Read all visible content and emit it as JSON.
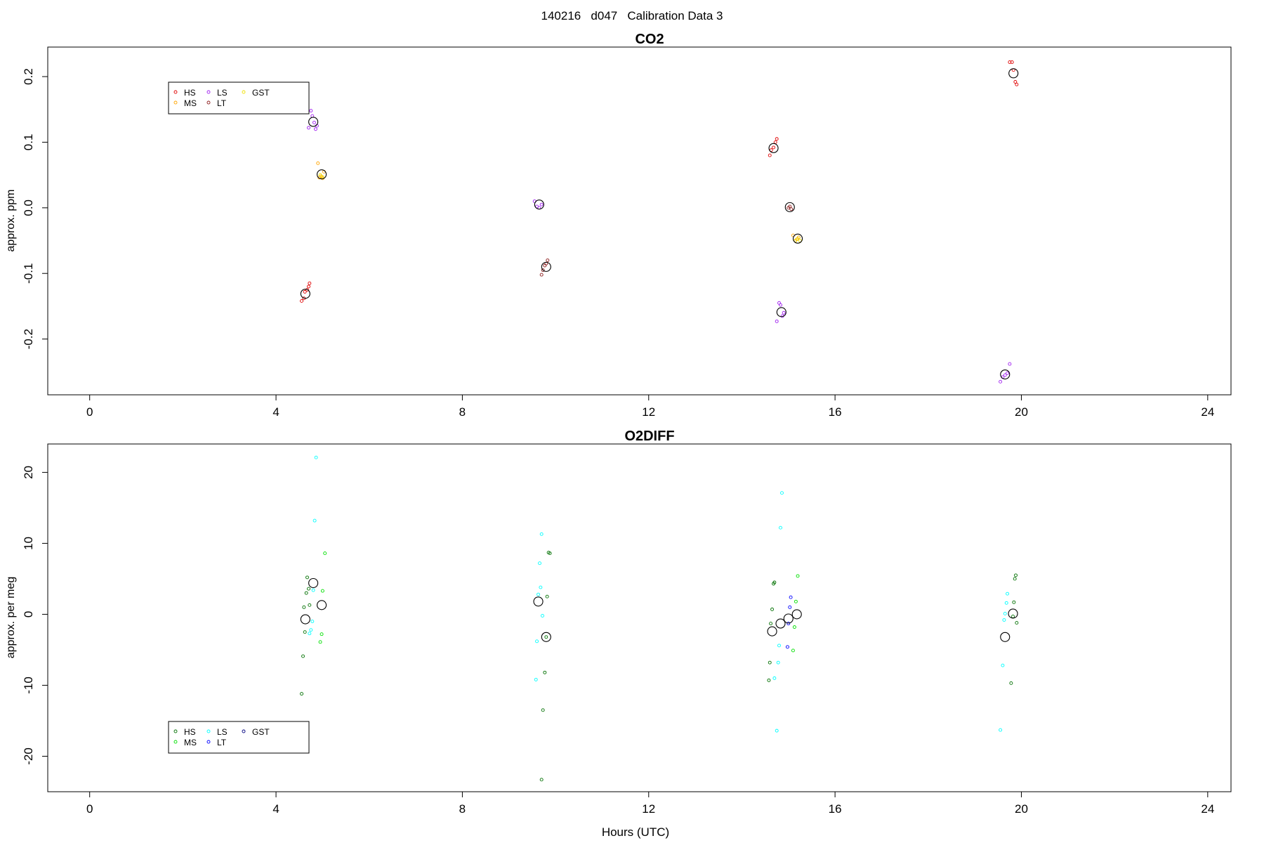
{
  "figure_title": "140216   d047   Calibration Data 3",
  "xlabel": "Hours (UTC)",
  "colors": {
    "HS": "#e00000",
    "MS": "#ffa500",
    "LS": "#a020f0",
    "LT": "#8b1a1a",
    "GST": "#f0e000",
    "HS2": "#007000",
    "MS2": "#00e000",
    "LS2": "#00ffff",
    "LT2": "#0000ff",
    "GST2": "#000080"
  },
  "chart_data": [
    {
      "type": "scatter",
      "title": "CO2",
      "xlabel": "",
      "ylabel": "approx. ppm",
      "xlim": [
        -0.9,
        24.5
      ],
      "ylim": [
        -0.285,
        0.245
      ],
      "x_ticks": [
        0,
        4,
        8,
        12,
        16,
        20,
        24
      ],
      "y_ticks": [
        -0.2,
        -0.1,
        0.0,
        0.1,
        0.2
      ],
      "y_tick_labels": [
        "-0.2",
        "-0.1",
        "0.0",
        "0.1",
        "0.2"
      ],
      "legend": {
        "position": "top-left",
        "entries": [
          {
            "name": "HS",
            "color": "#e00000"
          },
          {
            "name": "MS",
            "color": "#ffa500"
          },
          {
            "name": "LS",
            "color": "#a020f0"
          },
          {
            "name": "LT",
            "color": "#8b1a1a"
          },
          {
            "name": "GST",
            "color": "#f0e000"
          }
        ]
      },
      "series": [
        {
          "name": "HS",
          "color": "#e00000",
          "points": [
            [
              4.55,
              -0.142
            ],
            [
              4.6,
              -0.138
            ],
            [
              4.62,
              -0.128
            ],
            [
              4.67,
              -0.125
            ],
            [
              4.7,
              -0.12
            ],
            [
              4.72,
              -0.115
            ],
            [
              14.6,
              0.08
            ],
            [
              14.63,
              0.088
            ],
            [
              14.68,
              0.092
            ],
            [
              14.72,
              0.1
            ],
            [
              14.75,
              0.105
            ],
            [
              19.75,
              0.222
            ],
            [
              19.8,
              0.222
            ],
            [
              19.83,
              0.21
            ],
            [
              19.87,
              0.192
            ],
            [
              19.9,
              0.188
            ]
          ]
        },
        {
          "name": "MS",
          "color": "#ffa500",
          "points": [
            [
              4.9,
              0.068
            ],
            [
              4.93,
              0.046
            ],
            [
              4.97,
              0.048
            ],
            [
              5.0,
              0.045
            ],
            [
              5.03,
              0.055
            ],
            [
              15.1,
              -0.042
            ],
            [
              15.15,
              -0.05
            ],
            [
              15.18,
              -0.048
            ],
            [
              15.22,
              -0.045
            ]
          ]
        },
        {
          "name": "LS",
          "color": "#a020f0",
          "points": [
            [
              4.7,
              0.122
            ],
            [
              4.75,
              0.148
            ],
            [
              4.78,
              0.14
            ],
            [
              4.82,
              0.13
            ],
            [
              4.85,
              0.12
            ],
            [
              4.88,
              0.125
            ],
            [
              9.55,
              0.01
            ],
            [
              9.6,
              0.002
            ],
            [
              9.65,
              0.0
            ],
            [
              9.7,
              0.005
            ],
            [
              14.75,
              -0.173
            ],
            [
              14.8,
              -0.145
            ],
            [
              14.83,
              -0.148
            ],
            [
              14.87,
              -0.165
            ],
            [
              14.9,
              -0.16
            ],
            [
              19.55,
              -0.265
            ],
            [
              19.6,
              -0.258
            ],
            [
              19.65,
              -0.255
            ],
            [
              19.7,
              -0.252
            ],
            [
              19.75,
              -0.238
            ]
          ]
        },
        {
          "name": "LT",
          "color": "#8b1a1a",
          "points": [
            [
              9.7,
              -0.102
            ],
            [
              9.73,
              -0.095
            ],
            [
              9.77,
              -0.088
            ],
            [
              9.8,
              -0.085
            ],
            [
              9.83,
              -0.08
            ],
            [
              15.0,
              0.0
            ],
            [
              15.03,
              0.002
            ],
            [
              15.06,
              -0.002
            ]
          ]
        },
        {
          "name": "GST",
          "color": "#f0e000",
          "points": [
            [
              4.95,
              0.05
            ],
            [
              5.0,
              0.047
            ],
            [
              15.15,
              -0.05
            ],
            [
              15.2,
              -0.047
            ],
            [
              15.25,
              -0.05
            ]
          ]
        },
        {
          "name": "",
          "color": "#000000",
          "size": "large",
          "points": [
            [
              4.63,
              -0.131
            ],
            [
              4.8,
              0.131
            ],
            [
              4.98,
              0.051
            ],
            [
              9.65,
              0.005
            ],
            [
              9.8,
              -0.09
            ],
            [
              14.68,
              0.091
            ],
            [
              14.85,
              -0.159
            ],
            [
              15.03,
              0.001
            ],
            [
              15.2,
              -0.047
            ],
            [
              19.65,
              -0.254
            ],
            [
              19.83,
              0.205
            ]
          ]
        }
      ]
    },
    {
      "type": "scatter",
      "title": "O2DIFF",
      "xlabel": "Hours (UTC)",
      "ylabel": "approx. per meg",
      "xlim": [
        -0.9,
        24.5
      ],
      "ylim": [
        -25,
        24
      ],
      "x_ticks": [
        0,
        4,
        8,
        12,
        16,
        20,
        24
      ],
      "y_ticks": [
        -20,
        -10,
        0,
        10,
        20
      ],
      "y_tick_labels": [
        "-20",
        "-10",
        "0",
        "10",
        "20"
      ],
      "legend": {
        "position": "bottom-left",
        "entries": [
          {
            "name": "HS",
            "color": "#007000"
          },
          {
            "name": "MS",
            "color": "#00e000"
          },
          {
            "name": "LS",
            "color": "#00ffff"
          },
          {
            "name": "LT",
            "color": "#0000ff"
          },
          {
            "name": "GST",
            "color": "#000080"
          }
        ]
      },
      "series": [
        {
          "name": "HS",
          "color": "#007000",
          "points": [
            [
              4.55,
              -11.2
            ],
            [
              4.58,
              -5.9
            ],
            [
              4.62,
              -2.5
            ],
            [
              4.6,
              1.0
            ],
            [
              4.65,
              3.0
            ],
            [
              4.67,
              5.2
            ],
            [
              4.7,
              3.6
            ],
            [
              4.72,
              1.3
            ],
            [
              9.7,
              -23.3
            ],
            [
              9.73,
              -13.5
            ],
            [
              9.77,
              -8.2
            ],
            [
              9.8,
              -3.2
            ],
            [
              9.82,
              2.5
            ],
            [
              9.85,
              8.7
            ],
            [
              9.88,
              8.6
            ],
            [
              14.58,
              -9.3
            ],
            [
              14.6,
              -6.8
            ],
            [
              14.62,
              -1.3
            ],
            [
              14.65,
              0.7
            ],
            [
              14.68,
              4.3
            ],
            [
              14.7,
              4.5
            ],
            [
              19.78,
              -9.7
            ],
            [
              19.82,
              -0.3
            ],
            [
              19.84,
              1.7
            ],
            [
              19.86,
              5.0
            ],
            [
              19.88,
              5.5
            ],
            [
              19.9,
              -1.2
            ]
          ]
        },
        {
          "name": "MS",
          "color": "#00e000",
          "points": [
            [
              4.95,
              -3.9
            ],
            [
              4.98,
              -2.8
            ],
            [
              5.0,
              3.3
            ],
            [
              5.05,
              8.6
            ],
            [
              15.1,
              -5.1
            ],
            [
              15.13,
              -1.8
            ],
            [
              15.16,
              1.8
            ],
            [
              15.2,
              5.4
            ]
          ]
        },
        {
          "name": "LS",
          "color": "#00ffff",
          "points": [
            [
              4.72,
              -2.7
            ],
            [
              4.75,
              -2.2
            ],
            [
              4.78,
              -1.0
            ],
            [
              4.8,
              3.4
            ],
            [
              4.83,
              13.2
            ],
            [
              4.86,
              22.1
            ],
            [
              9.58,
              -9.2
            ],
            [
              9.6,
              -3.8
            ],
            [
              9.63,
              2.8
            ],
            [
              9.66,
              7.2
            ],
            [
              9.7,
              11.3
            ],
            [
              9.68,
              3.8
            ],
            [
              9.72,
              -0.2
            ],
            [
              14.7,
              -9.0
            ],
            [
              14.75,
              -16.4
            ],
            [
              14.78,
              -6.8
            ],
            [
              14.8,
              -4.4
            ],
            [
              14.83,
              12.2
            ],
            [
              14.86,
              17.1
            ],
            [
              19.55,
              -16.3
            ],
            [
              19.6,
              -7.2
            ],
            [
              19.63,
              -0.8
            ],
            [
              19.65,
              0.1
            ],
            [
              19.68,
              1.6
            ],
            [
              19.7,
              2.9
            ]
          ]
        },
        {
          "name": "LT",
          "color": "#0000ff",
          "points": [
            [
              14.98,
              -4.6
            ],
            [
              15.0,
              -1.3
            ],
            [
              15.03,
              1.0
            ],
            [
              15.05,
              2.4
            ]
          ]
        },
        {
          "name": "GST",
          "color": "#000080",
          "points": []
        },
        {
          "name": "",
          "color": "#000000",
          "size": "large",
          "points": [
            [
              4.63,
              -0.7
            ],
            [
              4.8,
              4.4
            ],
            [
              4.98,
              1.3
            ],
            [
              9.63,
              1.8
            ],
            [
              9.8,
              -3.2
            ],
            [
              14.65,
              -2.4
            ],
            [
              14.83,
              -1.3
            ],
            [
              15.0,
              -0.6
            ],
            [
              15.18,
              0.0
            ],
            [
              19.65,
              -3.2
            ],
            [
              19.82,
              0.1
            ]
          ]
        }
      ]
    }
  ]
}
